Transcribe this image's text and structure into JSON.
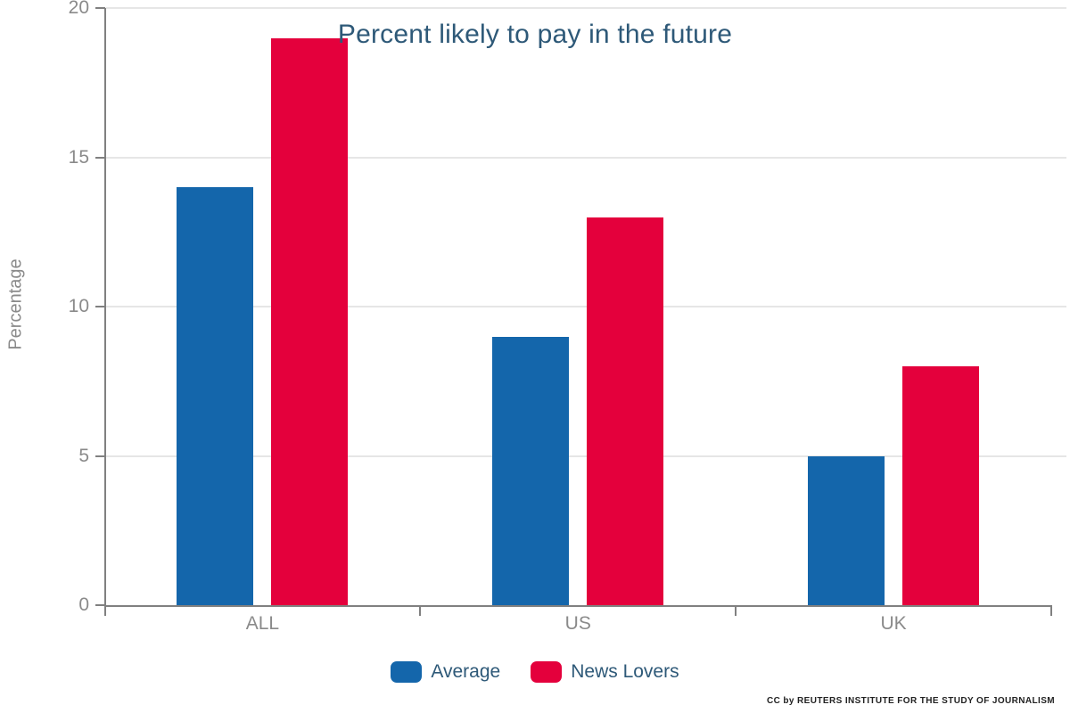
{
  "chart_data": {
    "type": "bar",
    "title": "Percent likely to pay in the future",
    "xlabel": "",
    "ylabel": "Percentage",
    "categories": [
      "ALL",
      "US",
      "UK"
    ],
    "series": [
      {
        "name": "Average",
        "color": "#1466ab",
        "values": [
          14,
          9,
          5
        ]
      },
      {
        "name": "News Lovers",
        "color": "#e4003c",
        "values": [
          19,
          13,
          8
        ]
      }
    ],
    "ylim": [
      0,
      20
    ],
    "yticks": [
      0,
      5,
      10,
      15,
      20
    ],
    "grid": true,
    "legend_position": "bottom"
  },
  "footer": {
    "credit": "CC by REUTERS INSTITUTE FOR THE STUDY OF JOURNALISM"
  },
  "colors": {
    "axis": "#808080",
    "gridline": "#e6e6e6",
    "tick_label": "#8a8a8a",
    "title_text": "#2e5978"
  }
}
